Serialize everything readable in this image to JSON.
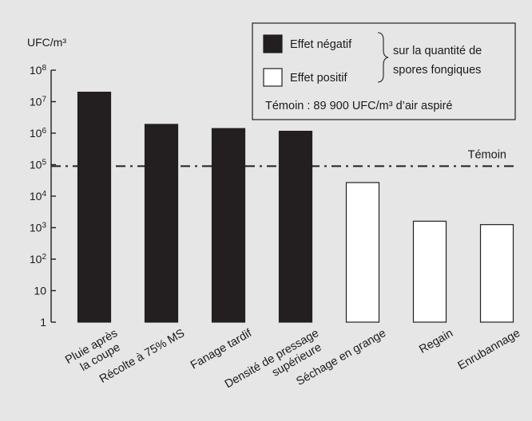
{
  "chart_data": {
    "type": "bar",
    "y_scale": "log10",
    "ylabel": "UFC/m³",
    "ylim": [
      1,
      100000000
    ],
    "y_ticks": [
      {
        "value": 1,
        "base": "1",
        "exp": ""
      },
      {
        "value": 10,
        "base": "10",
        "exp": ""
      },
      {
        "value": 100,
        "base": "10",
        "exp": "2"
      },
      {
        "value": 1000,
        "base": "10",
        "exp": "3"
      },
      {
        "value": 10000,
        "base": "10",
        "exp": "4"
      },
      {
        "value": 100000,
        "base": "10",
        "exp": "5"
      },
      {
        "value": 1000000,
        "base": "10",
        "exp": "6"
      },
      {
        "value": 10000000,
        "base": "10",
        "exp": "7"
      },
      {
        "value": 100000000,
        "base": "10",
        "exp": "8"
      }
    ],
    "categories": [
      [
        "Pluie après",
        "la coupe"
      ],
      [
        "Récolte à 75% MS"
      ],
      [
        "Fanage tardif"
      ],
      [
        "Densité de pressage",
        "supérieure"
      ],
      [
        "Séchage en grange"
      ],
      [
        "Regain"
      ],
      [
        "Enrubannage"
      ]
    ],
    "values": [
      20000000,
      1900000,
      1400000,
      1150000,
      27000,
      1600,
      1250
    ],
    "effect": [
      "negatif",
      "negatif",
      "negatif",
      "negatif",
      "positif",
      "positif",
      "positif"
    ],
    "reference_line": {
      "label": "Témoin",
      "value": 89900
    },
    "legend": {
      "negative_label": "Effet négatif",
      "positive_label": "Effet positif",
      "brace_text": [
        "sur la quantité de",
        "spores fongiques"
      ],
      "note": "Témoin : 89 900 UFC/m³ d’air aspiré"
    }
  },
  "colors": {
    "background": "#e6e6e7",
    "negative_bar": "#231f20",
    "positive_bar": "#ffffff",
    "stroke": "#231f20",
    "text": "#1a1a1a"
  }
}
